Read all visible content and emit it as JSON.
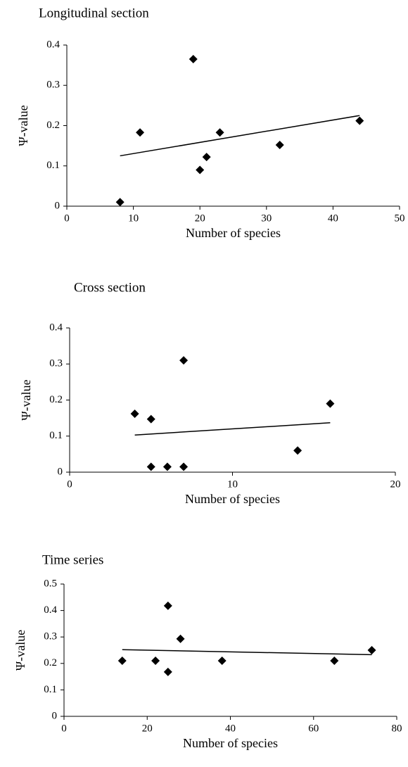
{
  "chart_data": [
    {
      "type": "scatter",
      "title": "Longitudinal section",
      "xlabel": "Number of species",
      "ylabel": "Ψ-value",
      "x": [
        8,
        11,
        19,
        20,
        21,
        23,
        32,
        44
      ],
      "values": [
        0.01,
        0.183,
        0.365,
        0.09,
        0.122,
        0.183,
        0.152,
        0.212
      ],
      "color": "#000000",
      "trendline": {
        "x": [
          8,
          44
        ],
        "values": [
          0.125,
          0.225
        ]
      },
      "xlim": [
        0,
        50
      ],
      "xticks": [
        0,
        10,
        20,
        30,
        40,
        50
      ],
      "ylim": [
        0,
        0.4
      ],
      "yticks": [
        0,
        0.1,
        0.2,
        0.3,
        0.4
      ]
    },
    {
      "type": "scatter",
      "title": "Cross section",
      "xlabel": "Number of species",
      "ylabel": "Ψ-value",
      "x": [
        4,
        5,
        5,
        6,
        7,
        7,
        14,
        16
      ],
      "values": [
        0.162,
        0.147,
        0.015,
        0.015,
        0.31,
        0.015,
        0.06,
        0.19
      ],
      "color": "#000000",
      "trendline": {
        "x": [
          4,
          16
        ],
        "values": [
          0.103,
          0.137
        ]
      },
      "xlim": [
        0,
        20
      ],
      "xticks": [
        0,
        10,
        20
      ],
      "ylim": [
        0,
        0.4
      ],
      "yticks": [
        0,
        0.1,
        0.2,
        0.3,
        0.4
      ]
    },
    {
      "type": "scatter",
      "title": "Time series",
      "xlabel": "Number of species",
      "ylabel": "Ψ-value",
      "x": [
        14,
        22,
        25,
        25,
        28,
        38,
        65,
        74
      ],
      "values": [
        0.21,
        0.21,
        0.418,
        0.168,
        0.293,
        0.21,
        0.21,
        0.25
      ],
      "color": "#000000",
      "trendline": {
        "x": [
          14,
          74
        ],
        "values": [
          0.252,
          0.233
        ]
      },
      "xlim": [
        0,
        80
      ],
      "xticks": [
        0,
        20,
        40,
        60,
        80
      ],
      "ylim": [
        0,
        0.5
      ],
      "yticks": [
        0,
        0.1,
        0.2,
        0.3,
        0.4,
        0.5
      ]
    }
  ]
}
